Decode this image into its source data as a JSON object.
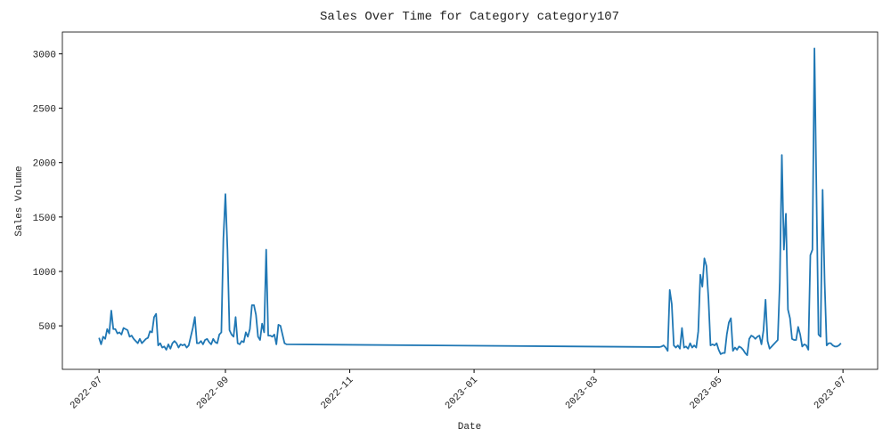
{
  "chart_data": {
    "type": "line",
    "title": "Sales Over Time for Category category107",
    "x_label": "Date",
    "y_label": "Sales Volume",
    "x": [
      0,
      1,
      2,
      3,
      4,
      5,
      6,
      7,
      8,
      9,
      10,
      11,
      12,
      13,
      14,
      15,
      16,
      17,
      18,
      19,
      20,
      21,
      22,
      23,
      24,
      25,
      26,
      27,
      28,
      29,
      30,
      31,
      32,
      33,
      34,
      35,
      36,
      37,
      38,
      39,
      40,
      41,
      42,
      43,
      44,
      45,
      46,
      47,
      48,
      49,
      50,
      51,
      52,
      53,
      54,
      55,
      56,
      57,
      58,
      59,
      60,
      61,
      62,
      63,
      64,
      65,
      66,
      67,
      68,
      69,
      70,
      71,
      72,
      73,
      74,
      75,
      76,
      77,
      78,
      79,
      80,
      81,
      82,
      83,
      84,
      85,
      86,
      87,
      88,
      89,
      90,
      91,
      92,
      275,
      276,
      277,
      278,
      279,
      280,
      281,
      282,
      283,
      284,
      285,
      286,
      287,
      288,
      289,
      290,
      291,
      292,
      293,
      294,
      295,
      296,
      297,
      298,
      299,
      300,
      301,
      302,
      303,
      304,
      305,
      306,
      307,
      308,
      309,
      310,
      311,
      312,
      313,
      314,
      315,
      316,
      317,
      318,
      319,
      320,
      321,
      322,
      323,
      324,
      325,
      326,
      327,
      328,
      329,
      330,
      331,
      332,
      333,
      334,
      335,
      336,
      337,
      338,
      339,
      340,
      341,
      342,
      343,
      344,
      345,
      346,
      347,
      348,
      349,
      350,
      351,
      352,
      353,
      354,
      355,
      356,
      357,
      358,
      359,
      360,
      361,
      362,
      363,
      364
    ],
    "series": [
      {
        "color": "#1f77b4",
        "values": [
          390,
          330,
          400,
          380,
          470,
          430,
          640,
          470,
          470,
          430,
          440,
          420,
          480,
          470,
          460,
          400,
          410,
          380,
          360,
          340,
          380,
          340,
          360,
          380,
          390,
          450,
          440,
          580,
          610,
          320,
          340,
          300,
          310,
          280,
          330,
          290,
          340,
          360,
          340,
          300,
          330,
          320,
          330,
          300,
          320,
          400,
          480,
          580,
          340,
          340,
          360,
          330,
          370,
          380,
          350,
          330,
          380,
          350,
          340,
          420,
          440,
          1300,
          1710,
          1200,
          460,
          420,
          400,
          580,
          340,
          330,
          360,
          350,
          440,
          400,
          470,
          690,
          690,
          600,
          400,
          370,
          520,
          440,
          1200,
          410,
          410,
          400,
          420,
          330,
          510,
          500,
          420,
          340,
          330,
          305,
          310,
          320,
          300,
          270,
          830,
          700,
          320,
          300,
          320,
          290,
          480,
          300,
          310,
          290,
          340,
          300,
          320,
          300,
          450,
          970,
          860,
          1120,
          1050,
          750,
          320,
          330,
          320,
          340,
          280,
          240,
          250,
          250,
          420,
          530,
          570,
          270,
          300,
          280,
          310,
          300,
          280,
          250,
          230,
          380,
          410,
          400,
          380,
          400,
          410,
          330,
          460,
          740,
          360,
          290,
          310,
          330,
          350,
          370,
          900,
          2070,
          1200,
          1530,
          650,
          570,
          380,
          370,
          370,
          490,
          420,
          310,
          330,
          320,
          280,
          1150,
          1200,
          3050,
          1700,
          420,
          400,
          1750,
          900,
          320,
          340,
          340,
          320,
          310,
          310,
          320,
          340
        ]
      }
    ],
    "xlim": [
      -18,
      382
    ],
    "xticks": [
      {
        "value": 0,
        "label": "2022-07"
      },
      {
        "value": 62,
        "label": "2022-09"
      },
      {
        "value": 123,
        "label": "2022-11"
      },
      {
        "value": 184,
        "label": "2023-01"
      },
      {
        "value": 243,
        "label": "2023-03"
      },
      {
        "value": 304,
        "label": "2023-05"
      },
      {
        "value": 365,
        "label": "2023-07"
      }
    ],
    "ylim": [
      100,
      3200
    ],
    "yticks": [
      500,
      1000,
      1500,
      2000,
      2500,
      3000
    ],
    "grid": false
  }
}
